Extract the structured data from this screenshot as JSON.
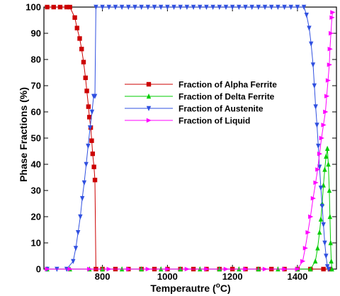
{
  "chart_data": {
    "type": "line",
    "title": "",
    "xlabel": "Temperautre (",
    "xlabel_unit": "C)",
    "ylabel": "Phase Fractions (%)",
    "xlim": [
      620,
      1520
    ],
    "ylim": [
      0,
      100
    ],
    "x_ticks": [
      800,
      1000,
      1200,
      1400
    ],
    "y_ticks": [
      0,
      10,
      20,
      30,
      40,
      50,
      60,
      70,
      80,
      90,
      100
    ],
    "grid": false,
    "legend_position": "center",
    "series": [
      {
        "name": "Fraction of Alpha Ferrite",
        "color": "#cc0000",
        "marker": "square",
        "points": [
          [
            630,
            100
          ],
          [
            650,
            100
          ],
          [
            670,
            100
          ],
          [
            690,
            100
          ],
          [
            700,
            100
          ],
          [
            715,
            96
          ],
          [
            722,
            92
          ],
          [
            730,
            88
          ],
          [
            736,
            84
          ],
          [
            742,
            79
          ],
          [
            748,
            73
          ],
          [
            752,
            68
          ],
          [
            757,
            62
          ],
          [
            760,
            58
          ],
          [
            764,
            54
          ],
          [
            767,
            49
          ],
          [
            770,
            44
          ],
          [
            774,
            39
          ],
          [
            777,
            34
          ],
          [
            780,
            0
          ],
          [
            800,
            0
          ],
          [
            840,
            0
          ],
          [
            880,
            0
          ],
          [
            920,
            0
          ],
          [
            960,
            0
          ],
          [
            1000,
            0
          ],
          [
            1040,
            0
          ],
          [
            1080,
            0
          ],
          [
            1120,
            0
          ],
          [
            1160,
            0
          ],
          [
            1200,
            0
          ],
          [
            1240,
            0
          ],
          [
            1280,
            0
          ],
          [
            1320,
            0
          ],
          [
            1360,
            0
          ],
          [
            1400,
            0
          ],
          [
            1440,
            0
          ],
          [
            1480,
            0
          ],
          [
            1500,
            0
          ]
        ]
      },
      {
        "name": "Fraction of Delta Ferrite",
        "color": "#00cc00",
        "marker": "triangle-up",
        "points": [
          [
            630,
            0
          ],
          [
            700,
            0
          ],
          [
            760,
            0
          ],
          [
            800,
            0
          ],
          [
            860,
            0
          ],
          [
            920,
            0
          ],
          [
            980,
            0
          ],
          [
            1040,
            0
          ],
          [
            1100,
            0
          ],
          [
            1160,
            0
          ],
          [
            1220,
            0
          ],
          [
            1280,
            0
          ],
          [
            1340,
            0
          ],
          [
            1400,
            0
          ],
          [
            1440,
            0
          ],
          [
            1455,
            3
          ],
          [
            1462,
            8
          ],
          [
            1468,
            14
          ],
          [
            1472,
            19
          ],
          [
            1476,
            25
          ],
          [
            1480,
            32
          ],
          [
            1484,
            38
          ],
          [
            1488,
            43
          ],
          [
            1492,
            46
          ],
          [
            1495,
            40
          ],
          [
            1498,
            30
          ],
          [
            1500,
            20
          ],
          [
            1502,
            10
          ],
          [
            1504,
            3
          ],
          [
            1506,
            0
          ]
        ]
      },
      {
        "name": "Fraction of Austenite",
        "color": "#3050e0",
        "marker": "triangle-down",
        "points": [
          [
            630,
            0
          ],
          [
            660,
            0
          ],
          [
            690,
            0
          ],
          [
            710,
            3
          ],
          [
            718,
            8
          ],
          [
            725,
            14
          ],
          [
            732,
            20
          ],
          [
            738,
            27
          ],
          [
            744,
            33
          ],
          [
            750,
            40
          ],
          [
            756,
            47
          ],
          [
            762,
            54
          ],
          [
            768,
            60
          ],
          [
            773,
            66
          ],
          [
            777,
            66
          ],
          [
            780,
            100
          ],
          [
            800,
            100
          ],
          [
            820,
            100
          ],
          [
            840,
            100
          ],
          [
            860,
            100
          ],
          [
            880,
            100
          ],
          [
            900,
            100
          ],
          [
            920,
            100
          ],
          [
            940,
            100
          ],
          [
            960,
            100
          ],
          [
            980,
            100
          ],
          [
            1000,
            100
          ],
          [
            1020,
            100
          ],
          [
            1040,
            100
          ],
          [
            1060,
            100
          ],
          [
            1080,
            100
          ],
          [
            1100,
            100
          ],
          [
            1120,
            100
          ],
          [
            1140,
            100
          ],
          [
            1160,
            100
          ],
          [
            1180,
            100
          ],
          [
            1200,
            100
          ],
          [
            1220,
            100
          ],
          [
            1240,
            100
          ],
          [
            1260,
            100
          ],
          [
            1280,
            100
          ],
          [
            1300,
            100
          ],
          [
            1320,
            100
          ],
          [
            1340,
            100
          ],
          [
            1360,
            100
          ],
          [
            1380,
            100
          ],
          [
            1400,
            100
          ],
          [
            1420,
            100
          ],
          [
            1428,
            97
          ],
          [
            1436,
            92
          ],
          [
            1442,
            86
          ],
          [
            1448,
            78
          ],
          [
            1452,
            70
          ],
          [
            1456,
            62
          ],
          [
            1460,
            55
          ],
          [
            1464,
            47
          ],
          [
            1468,
            39
          ],
          [
            1472,
            31
          ],
          [
            1476,
            24
          ],
          [
            1480,
            17
          ],
          [
            1484,
            10
          ],
          [
            1488,
            5
          ],
          [
            1492,
            1
          ],
          [
            1496,
            0
          ]
        ]
      },
      {
        "name": "Fraction of Liquid",
        "color": "#ff00ff",
        "marker": "triangle-right",
        "points": [
          [
            630,
            0
          ],
          [
            700,
            0
          ],
          [
            760,
            0
          ],
          [
            820,
            0
          ],
          [
            880,
            0
          ],
          [
            940,
            0
          ],
          [
            1000,
            0
          ],
          [
            1060,
            0
          ],
          [
            1120,
            0
          ],
          [
            1180,
            0
          ],
          [
            1240,
            0
          ],
          [
            1300,
            0
          ],
          [
            1360,
            0
          ],
          [
            1400,
            0
          ],
          [
            1416,
            3
          ],
          [
            1424,
            8
          ],
          [
            1432,
            14
          ],
          [
            1440,
            20
          ],
          [
            1448,
            27
          ],
          [
            1456,
            33
          ],
          [
            1462,
            38
          ],
          [
            1468,
            44
          ],
          [
            1474,
            50
          ],
          [
            1480,
            55
          ],
          [
            1486,
            60
          ],
          [
            1490,
            66
          ],
          [
            1494,
            72
          ],
          [
            1498,
            78
          ],
          [
            1500,
            84
          ],
          [
            1503,
            90
          ],
          [
            1506,
            96
          ],
          [
            1508,
            98
          ]
        ]
      }
    ]
  }
}
